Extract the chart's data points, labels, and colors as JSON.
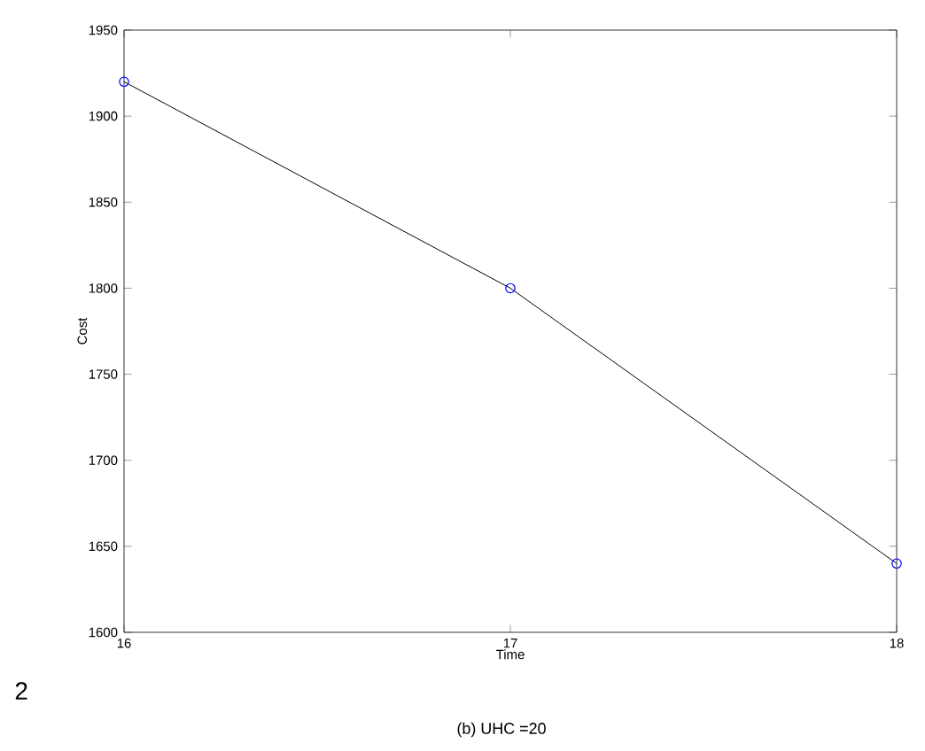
{
  "chart_data": {
    "type": "line",
    "xlabel": "Time",
    "ylabel": "Cost",
    "x": [
      16,
      17,
      18
    ],
    "series": [
      {
        "color": "#000000",
        "colors": [
          "#0000ff",
          "#0000ff",
          "#0000ff"
        ],
        "values": [
          1920,
          1800,
          1640
        ]
      }
    ],
    "xlim": [
      16,
      18
    ],
    "xticks": [
      16,
      17,
      18
    ],
    "ylim": [
      1600,
      1950
    ],
    "yticks": [
      1600,
      1650,
      1700,
      1750,
      1800,
      1850,
      1900,
      1950
    ],
    "marker": "circle",
    "line_style": "solid",
    "grid": false,
    "annotations": [
      "2",
      "(b) UHC =20"
    ]
  }
}
